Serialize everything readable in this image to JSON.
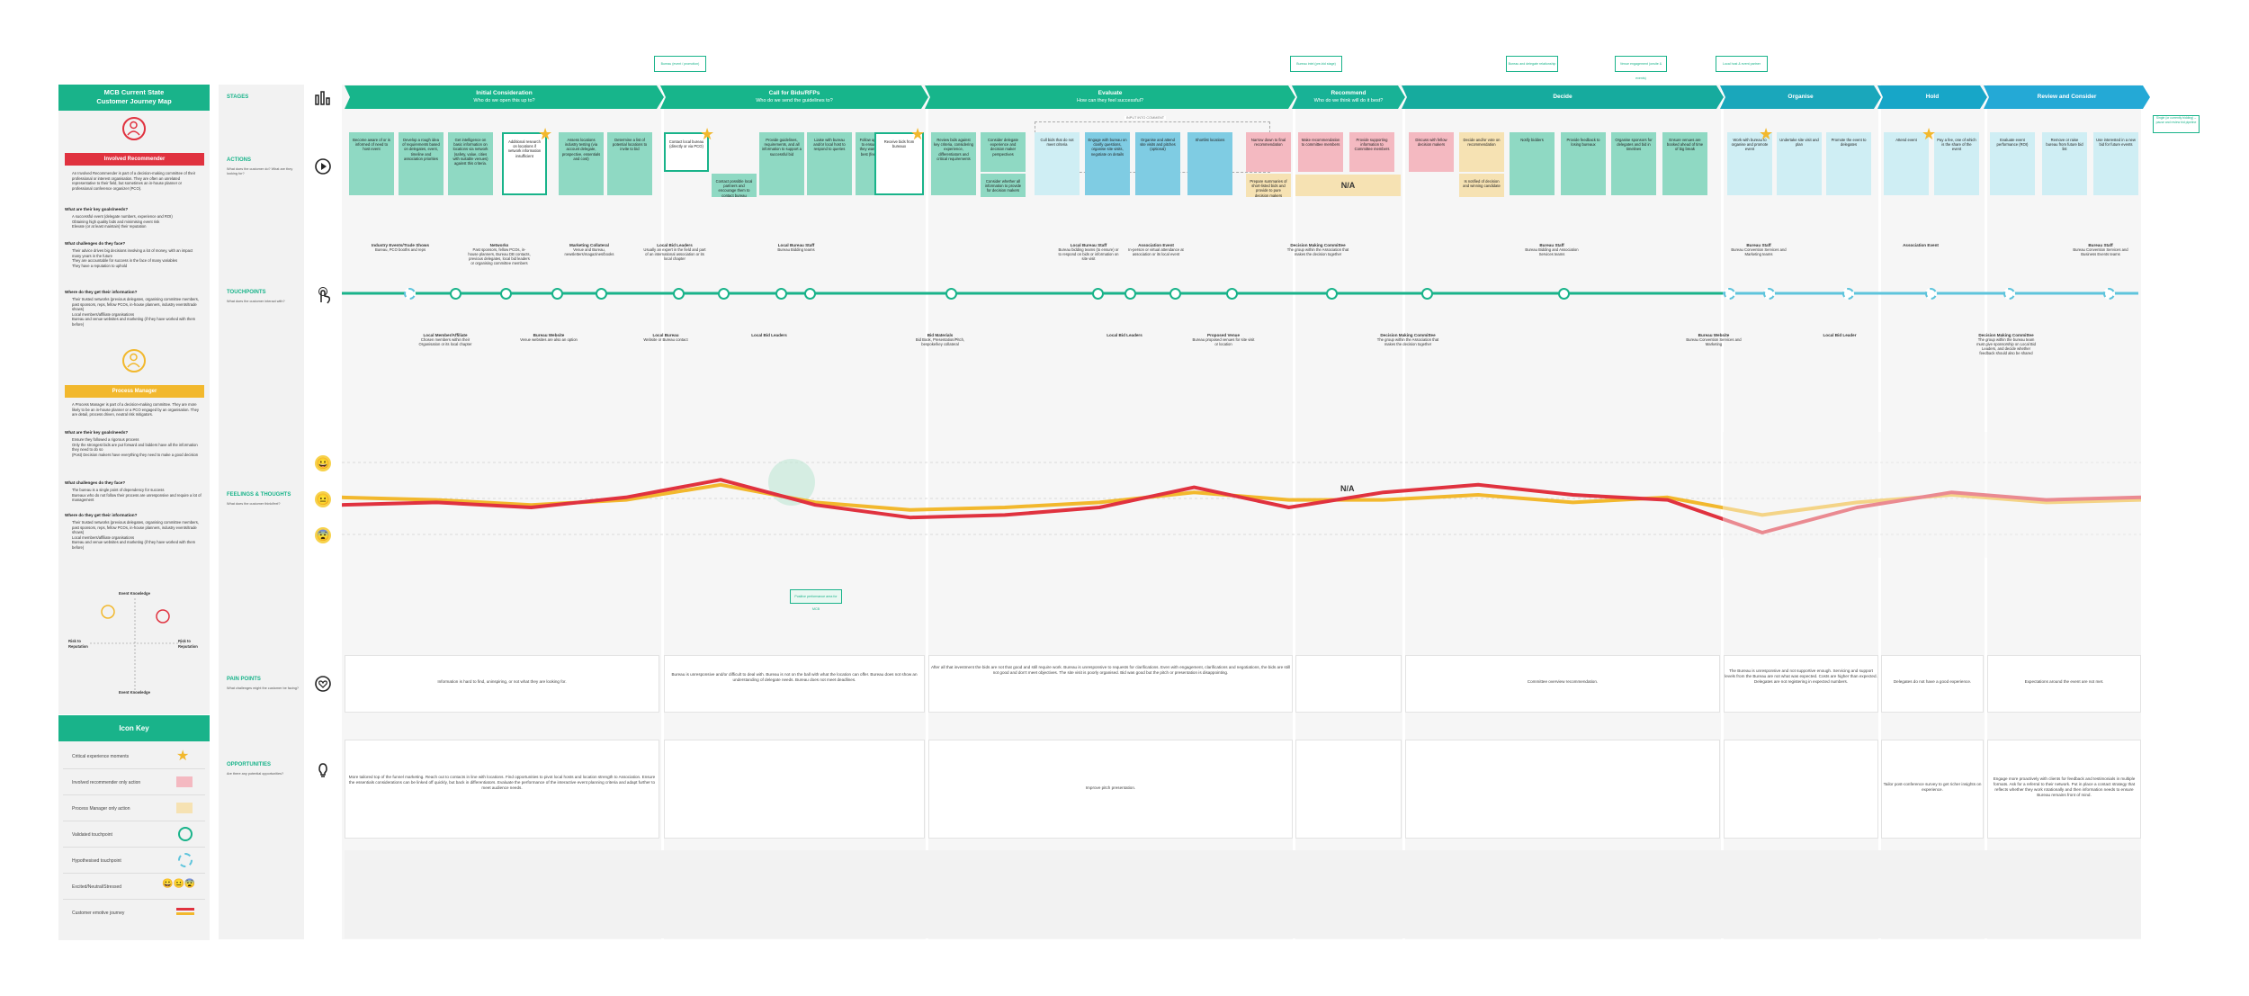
{
  "persona_panel": {
    "title_line1": "MCB Current State",
    "title_line2": "Customer Journey Map",
    "persona1": {
      "tag": "Involved Recommender",
      "intro": "An Involved Recommender is part of a decision-making committee of their professional or interest organisation. They are often an unrelated representative to their field, but sometimes an in-house planner or professional conference organizer (PCO).",
      "needs_title": "What are their key goals/needs?",
      "needs": [
        "A successful event (delegate numbers, experience and ROI)",
        "Obtaining high quality bids and minimising event risk",
        "Elevate (or at least maintain) their reputation"
      ],
      "challenges_title": "What challenges do they face?",
      "challenges": [
        "Their advice drives big decisions involving a lot of money, with an impact many years in the future",
        "They are accountable for success in the face of many variables",
        "They have a reputation to uphold"
      ],
      "info_title": "Where do they get their information?",
      "info": [
        "Their trusted networks (previous delegates, organising committee members, past sponsors, reps, fellow PCOs, in-house planners, industry events/trade shows)",
        "Local members/affiliate organisations",
        "Bureau and venue websites and marketing (if they have worked with them before)"
      ]
    },
    "persona2": {
      "tag": "Process Manager",
      "intro": "A Process Manager is part of a decision-making committee. They are more likely to be an in-house planner or a PCO engaged by an organisation. They are detail, process driven, neutral risk mitigators.",
      "needs_title": "What are their key goals/needs?",
      "needs": [
        "Ensure they followed a rigorous process",
        "Only the strongest bids are put forward and bidders have all the information they need to do so",
        "(Post) Decision makers have everything they need to make a good decision"
      ],
      "challenges_title": "What challenges do they face?",
      "challenges": [
        "The bureau is a single point of dependency for success",
        "Bureaux who do not follow their process are unresponsive and require a lot of management"
      ],
      "info_title": "Where do they get their information?",
      "info": [
        "Their trusted networks (previous delegates, organising committee members, past sponsors, reps, fellow PCOs, in-house planners, industry events/trade shows)",
        "Local members/affiliate organisations",
        "Bureau and venue websites and marketing (if they have worked with them before)"
      ]
    },
    "matrix": {
      "top": "Event Knowledge",
      "bottom": "Event Knowledge",
      "left": "Risk to Reputation",
      "right": "Risk to Reputation"
    }
  },
  "icon_key": {
    "title": "Icon Key",
    "rows": [
      "Critical experience moments",
      "Involved recommender only action",
      "Process Manager only action",
      "Validated touchpoint",
      "Hypothesised touchpoint",
      "Excited/Neutral/Stressed",
      "Customer emotive journey"
    ]
  },
  "row_labels": {
    "stages": "STAGES",
    "actions": "ACTIONS",
    "actions_sub": "What does the customer do? What are they looking for?",
    "touchpoints": "TOUCHPOINTS",
    "touchpoints_sub": "What does the customer interact with?",
    "feelings": "FEELINGS & THOUGHTS",
    "feelings_sub": "What does the customer think/feel?",
    "pain": "PAIN POINTS",
    "pain_sub": "What challenges might the customer be facing?",
    "opps": "OPPORTUNITIES",
    "opps_sub": "Are there any potential opportunities?"
  },
  "stages": [
    {
      "name": "Initial Consideration",
      "q": "Who do we open this up to?",
      "color": "#17b58b"
    },
    {
      "name": "Call for Bids/RFPs",
      "q": "Who do we send the guidelines to?",
      "color": "#17b58b"
    },
    {
      "name": "Evaluate",
      "q": "How can they feel successful?",
      "color": "#17b58b"
    },
    {
      "name": "Recommend",
      "q": "Who do we think will do it best?",
      "color": "#18b296"
    },
    {
      "name": "Decide",
      "q": "",
      "color": "#16ab9e"
    },
    {
      "name": "Organise",
      "q": "",
      "color": "#1aa7bb"
    },
    {
      "name": "Hold",
      "q": "",
      "color": "#17a6c8"
    },
    {
      "name": "Review and Consider",
      "q": "",
      "color": "#24a9d6"
    }
  ],
  "actions": [
    "Become aware of or is informed of need to host event",
    "Develop a rough idea of requirements based on delegates, event, timeline and association priorities",
    "Get intelligence on basic information on locations via network (safety, value, cities with suitable venues) against this criteria.",
    "Additional research on locations if network information insufficient",
    "Assess locations industry testing (via account delegate, prospective, essentials and cost)",
    "Determine a list of potential locations to invite to bid",
    "Contact local bureau (directly or via PCO)",
    "Contact possible local partners and encourage them to contact bureau",
    "Provide guidelines, requirements, and all information to support a successful bid",
    "Liaise with bureau and/or local host to respond to queries",
    "Follow up with bureau to ensure they have they want to give their best (feel supported)",
    "Receive bids from bureaux",
    "Review bids against key criteria, considering experience, differentiators and critical requirements",
    "Consider delegate experience and decision maker perspectives",
    "Consider whether all information to provide for decision makers",
    "Cull bids that do not meet criteria",
    "Engage with bureau on clarify questions, organise site visits, negotiate on details",
    "Organise and attend site visits and pitches (optional)",
    "Shortlist locations",
    "Narrow down to final recommendation",
    "Prepare summaries of short-listed bids and provide to pure decision makers",
    "Make recommendation to committee members",
    "Provide supporting information to Committee members",
    "Discuss with fellow decision makers",
    "Decide and/or vote on recommendation",
    "Is notified of decision and winning candidate",
    "Notify bidders",
    "Provide feedback to losing bureaux",
    "Organise sponsors for delegates and bid in timelines",
    "Ensure venues are booked ahead of time of big break",
    "Work with bureau to organise and promote event",
    "Undertake site visit and plan",
    "Promote the event to delegates",
    "Attend event",
    "Pay a fee, one of which is the share of the event",
    "Evaluate event performance (ROI)",
    "Remove or raise bureau from future bid list",
    "Use interested in a new bid for future events"
  ],
  "na_label": "N/A",
  "touchpoints": {
    "top": [
      {
        "title": "Industry Events/Trade Shows",
        "desc": "Bureau, PCO booths and reps"
      },
      {
        "title": "Networks",
        "desc": "Past sponsors, fellow PCOs, in-house planners, Bureau DB contacts, previous delegates, local bid leaders or organising committee members"
      },
      {
        "title": "Marketing Collateral",
        "desc": "Venue and Bureau, newsletters/magazines/books"
      },
      {
        "title": "Local Bid Leaders",
        "desc": "Usually an expert in the field and part of an international association or its local chapter"
      },
      {
        "title": "Local Bureau Staff",
        "desc": "Bureau Bidding teams"
      },
      {
        "title": "Local Bureau Staff",
        "desc": "Bureau bidding teams (to ensure) or to respond on bids or information on site visit"
      },
      {
        "title": "Association Event",
        "desc": "In-person or virtual attendance at association or its local event"
      },
      {
        "title": "Decision Making Committee",
        "desc": "The group within the Association that makes the decision together"
      },
      {
        "title": "Bureau Staff",
        "desc": "Bureau Bidding and Association Services teams"
      },
      {
        "title": "Bureau Staff",
        "desc": "Bureau Convention Services and Marketing teams"
      },
      {
        "title": "Association Event",
        "desc": ""
      },
      {
        "title": "Bureau Staff",
        "desc": "Bureau Convention Services and Business Events teams"
      }
    ],
    "bottom": [
      {
        "title": "Local Member/Affiliate",
        "desc": "Chosen members within their Organisation or its local chapter"
      },
      {
        "title": "Bureau Website",
        "desc": "Venue websites are also an option"
      },
      {
        "title": "Local Bureau",
        "desc": "Website or Bureau contact"
      },
      {
        "title": "Local Bid Leaders",
        "desc": ""
      },
      {
        "title": "Bid Materials",
        "desc": "Bid Book, Presentation/Pitch, bespoke/key collateral"
      },
      {
        "title": "Local Bid Leaders",
        "desc": ""
      },
      {
        "title": "Proposed Venue",
        "desc": "Bureau proposed venues for site visit or location"
      },
      {
        "title": "Decision Making Committee",
        "desc": "The group within the Association that makes the decision together"
      },
      {
        "title": "Bureau Website",
        "desc": "Bureau Convention Services and Marketing"
      },
      {
        "title": "Local Bid Leader",
        "desc": ""
      },
      {
        "title": "Decision Making Committee",
        "desc": "The group within the bureau team must give sponsorship on Local Bid Leaders, and decide whether feedback should also be shared"
      }
    ]
  },
  "feelings_na": "N/A",
  "feelings_tag": "Positive performance area for MCB",
  "pain_points": [
    "Information is hard to find, uninspiring, or not what they are looking for.",
    "Bureau is unresponsive and/or difficult to deal with. Bureau is not on the ball with what the location can offer. Bureau does not show an understanding of delegate needs. Bureau does not meet deadlines.",
    "After all that investment the bids are not that good and still require work. Bureau is unresponsive to requests for clarifications. Even with engagement, clarifications and negotiations, the bids are still not good and don't meet objectives. The site visit is poorly organised. Bid was good but the pitch or presentation is disappointing.",
    "",
    "Committee overview recommendation.",
    "The Bureau is unresponsive and not supportive enough. Servicing and support levels from the Bureau are not what was expected. Costs are higher than expected. Delegates are not registering in expected numbers.",
    "Delegates do not have a good experience.",
    "Expectations around the event are not met."
  ],
  "opportunities": [
    "More tailored top of the funnel marketing. Reach out to contacts in line with locations. Find opportunities to pivot local hosts and location strength to Association. Ensure the essentials considerations can be linked off quickly, but back in differentiators. Evaluate the performance of the interactive event planning criteria and adapt further to meet audience needs.",
    "",
    "Improve pitch presentation.",
    "",
    "",
    "",
    "Tailor post-conference survey to get richer insights on experience.",
    "Engage more proactively with clients for feedback and testimonials in multiple formats. Ask for a referral to their network. Put in place a contact strategy that reflects whether they work rotationally and then information needs to ensure Bureau remains front of mind."
  ],
  "small_tags": [
    "Bureau (event / promotion)",
    "Bureau intel (pre-bid stage)",
    "Bureau and delegate relationship",
    "Venue engagement (onsite & events)",
    "Local host & event partner",
    "Organise and promote events (pre-event)"
  ],
  "right_note": "Single (or currently bidding) – pause and review bid pipeline",
  "bid_note": "INPUT INTO COMMENT",
  "emotion_series": {
    "involved_recommender": [
      0.42,
      0.44,
      0.4,
      0.48,
      0.62,
      0.42,
      0.32,
      0.34,
      0.4,
      0.56,
      0.4,
      0.52,
      0.58,
      0.5,
      0.46,
      0.2,
      0.4,
      0.52,
      0.46,
      0.48
    ],
    "process_manager": [
      0.48,
      0.46,
      0.42,
      0.46,
      0.58,
      0.44,
      0.38,
      0.4,
      0.44,
      0.52,
      0.46,
      0.46,
      0.5,
      0.44,
      0.48,
      0.34,
      0.44,
      0.5,
      0.44,
      0.46
    ]
  },
  "colors": {
    "teal": "#19b38a",
    "red": "#e0323f",
    "yellow": "#f2b82d",
    "blue": "#24a9d6"
  }
}
